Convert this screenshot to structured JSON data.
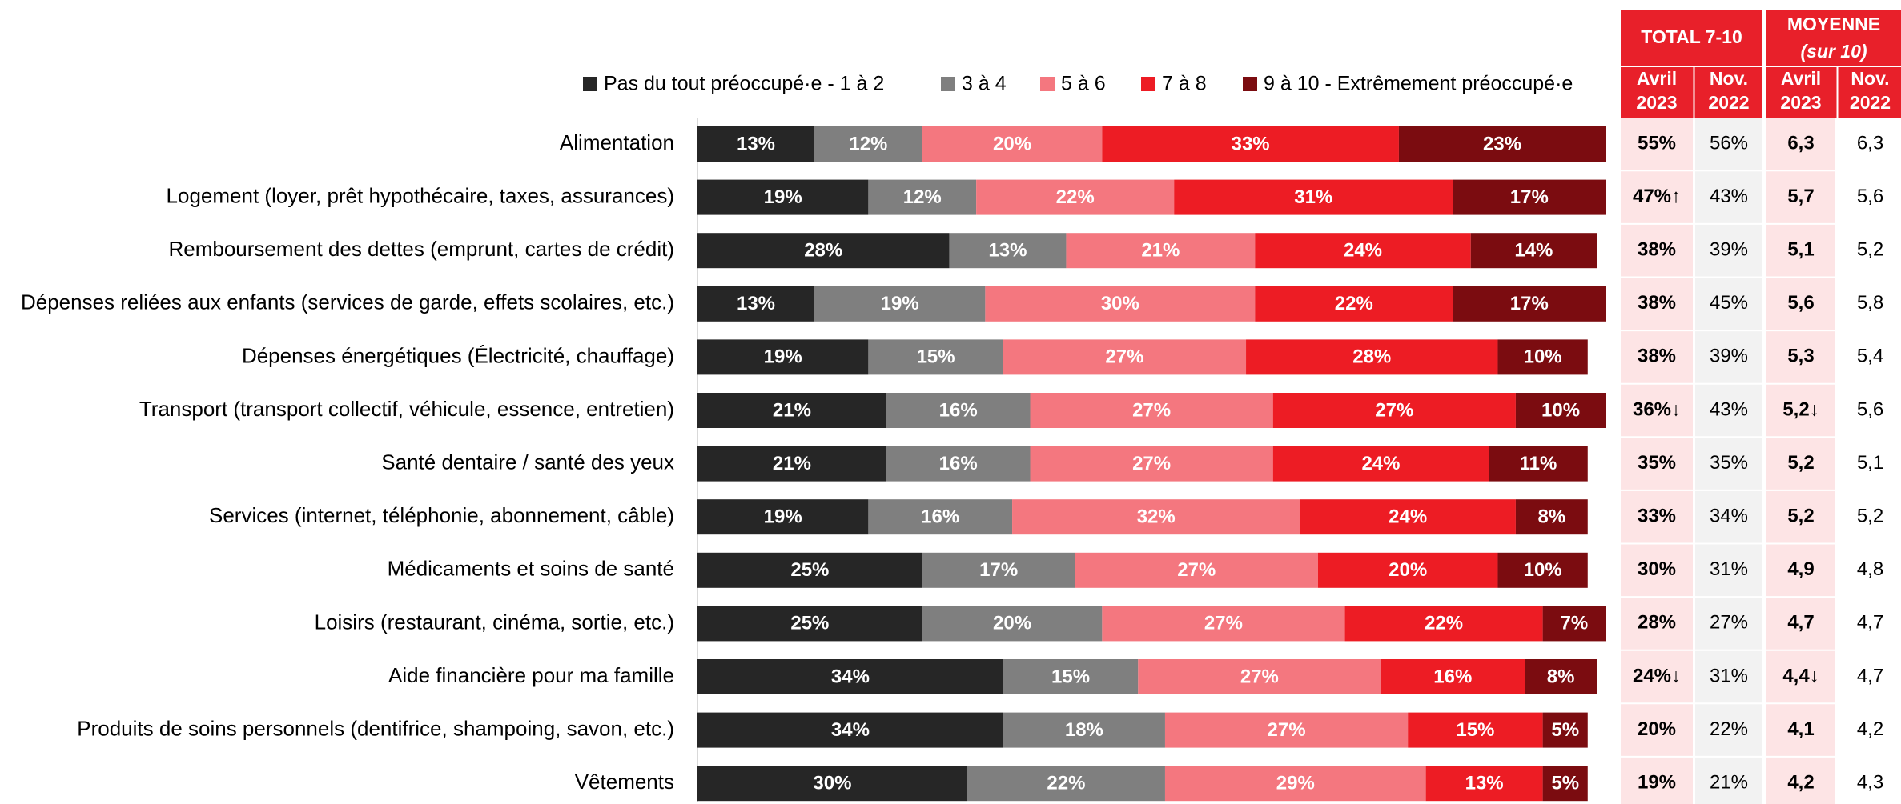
{
  "chart_data": {
    "type": "bar",
    "orientation": "horizontal",
    "stacked": true,
    "categories": [
      "Alimentation",
      "Logement (loyer, prêt hypothécaire, taxes, assurances)",
      "Remboursement des dettes (emprunt, cartes de crédit)",
      "Dépenses reliées aux enfants (services de garde, effets scolaires, etc.)",
      "Dépenses énergétiques (Électricité, chauffage)",
      "Transport (transport collectif, véhicule, essence, entretien)",
      "Santé dentaire / santé des yeux",
      "Services (internet, téléphonie, abonnement, câble)",
      "Médicaments et soins de santé",
      "Loisirs (restaurant, cinéma, sortie, etc.)",
      "Aide financière pour ma famille",
      "Produits de soins personnels (dentifrice, shampoing, savon, etc.)",
      "Vêtements"
    ],
    "xlim": [
      0,
      100
    ],
    "series": [
      {
        "name": "Pas du tout préoccupé·e  - 1 à 2",
        "color": "#262626",
        "values": [
          13,
          19,
          28,
          13,
          19,
          21,
          21,
          19,
          25,
          25,
          34,
          34,
          30
        ],
        "value_labels": [
          "13%",
          "19%",
          "28%",
          "13%",
          "19%",
          "21%",
          "21%",
          "19%",
          "25%",
          "25%",
          "34%",
          "34%",
          "30%"
        ]
      },
      {
        "name": "3 à 4",
        "color": "#7f7f7f",
        "values": [
          12,
          12,
          13,
          19,
          15,
          16,
          16,
          16,
          17,
          20,
          15,
          18,
          22
        ],
        "value_labels": [
          "12%",
          "12%",
          "13%",
          "19%",
          "15%",
          "16%",
          "16%",
          "16%",
          "17%",
          "20%",
          "15%",
          "18%",
          "22%"
        ]
      },
      {
        "name": "5 à 6",
        "color": "#f4777f",
        "values": [
          20,
          22,
          21,
          30,
          27,
          27,
          27,
          32,
          27,
          27,
          27,
          27,
          29
        ],
        "value_labels": [
          "20%",
          "22%",
          "21%",
          "30%",
          "27%",
          "27%",
          "27%",
          "32%",
          "27%",
          "27%",
          "27%",
          "27%",
          "29%"
        ]
      },
      {
        "name": "7 à 8",
        "color": "#ed1c24",
        "values": [
          33,
          31,
          24,
          22,
          28,
          27,
          24,
          24,
          20,
          22,
          16,
          15,
          13
        ],
        "value_labels": [
          "33%",
          "31%",
          "24%",
          "22%",
          "28%",
          "27%",
          "24%",
          "24%",
          "20%",
          "22%",
          "16%",
          "15%",
          "13%"
        ]
      },
      {
        "name": "9 à 10 - Extrêmement préoccupé·e",
        "color": "#7b0c10",
        "values": [
          23,
          17,
          14,
          17,
          10,
          10,
          11,
          8,
          10,
          7,
          8,
          5,
          5
        ],
        "value_labels": [
          "23%",
          "17%",
          "14%",
          "17%",
          "10%",
          "10%",
          "11%",
          "8%",
          "10%",
          "7%",
          "8%",
          "5%",
          "5%"
        ]
      }
    ]
  },
  "table": {
    "groups": [
      {
        "title": "TOTAL 7-10"
      },
      {
        "title": "MOYENNE",
        "subtitle": "(sur 10)"
      }
    ],
    "columns": [
      [
        "Avril",
        "2023"
      ],
      [
        "Nov.",
        "2022"
      ],
      [
        "Avril",
        "2023"
      ],
      [
        "Nov.",
        "2022"
      ]
    ],
    "rows": [
      [
        "55%",
        "56%",
        "6,3",
        "6,3"
      ],
      [
        "47%↑",
        "43%",
        "5,7",
        "5,6"
      ],
      [
        "38%",
        "39%",
        "5,1",
        "5,2"
      ],
      [
        "38%",
        "45%",
        "5,6",
        "5,8"
      ],
      [
        "38%",
        "39%",
        "5,3",
        "5,4"
      ],
      [
        "36%↓",
        "43%",
        "5,2↓",
        "5,6"
      ],
      [
        "35%",
        "35%",
        "5,2",
        "5,1"
      ],
      [
        "33%",
        "34%",
        "5,2",
        "5,2"
      ],
      [
        "30%",
        "31%",
        "4,9",
        "4,8"
      ],
      [
        "28%",
        "27%",
        "4,7",
        "4,7"
      ],
      [
        "24%↓",
        "31%",
        "4,4↓",
        "4,7"
      ],
      [
        "20%",
        "22%",
        "4,1",
        "4,2"
      ],
      [
        "19%",
        "21%",
        "4,2",
        "4,3"
      ]
    ]
  }
}
